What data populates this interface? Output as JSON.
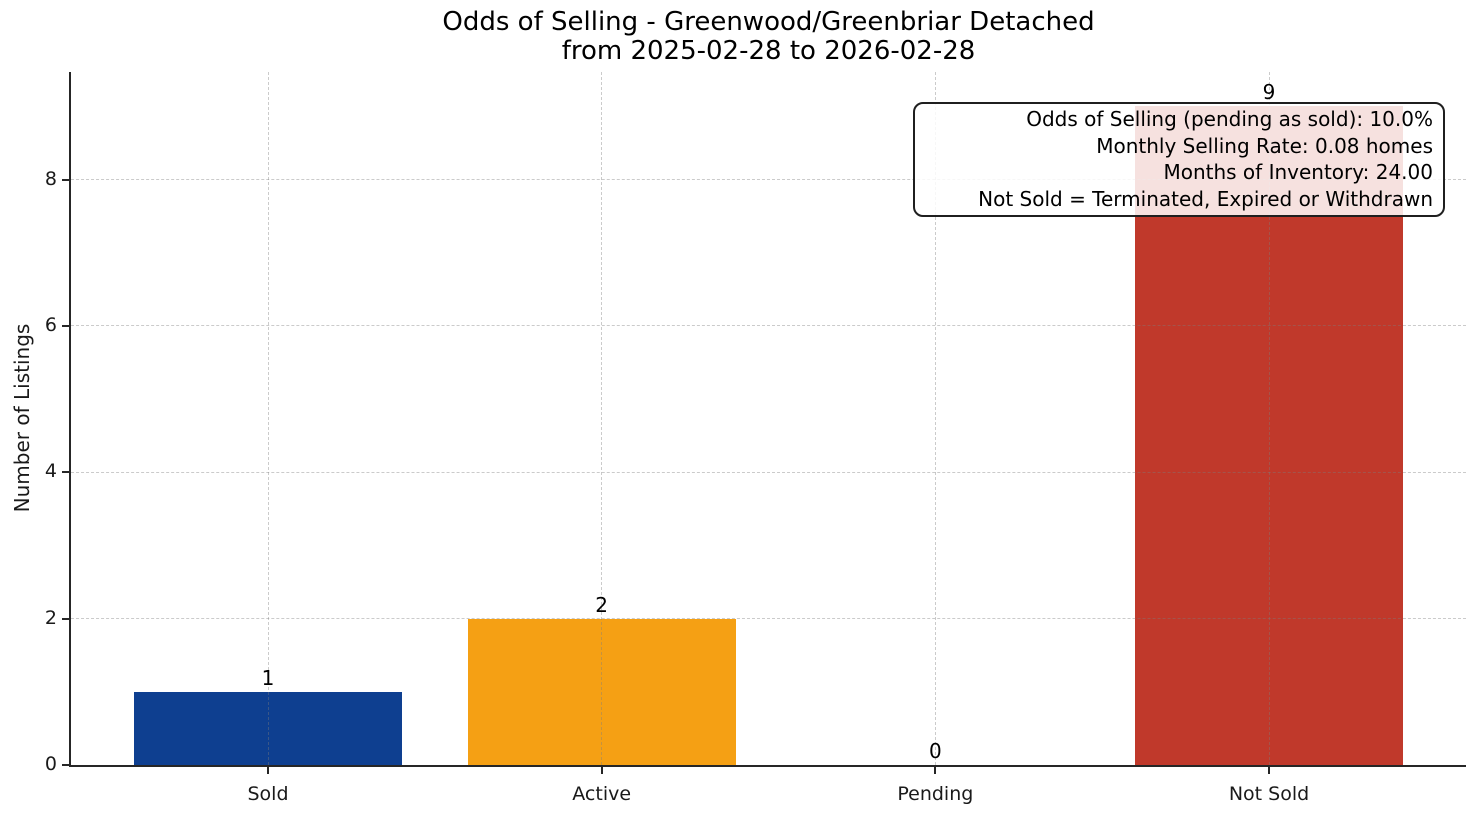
{
  "chart_data": {
    "type": "bar",
    "title": "Odds of Selling - Greenwood/Greenbriar Detached\nfrom 2025-02-28 to 2026-02-28",
    "title_lines": [
      "Odds of Selling - Greenwood/Greenbriar Detached",
      "from 2025-02-28 to 2026-02-28"
    ],
    "categories": [
      "Sold",
      "Active",
      "Pending",
      "Not Sold"
    ],
    "values": [
      1,
      2,
      0,
      9
    ],
    "value_labels": [
      "1",
      "2",
      "0",
      "9"
    ],
    "bar_colors": [
      "#0e3f90",
      "#f5a014",
      null,
      "#c0392b"
    ],
    "xlabel": "",
    "ylabel": "Number of Listings",
    "ylim": [
      0,
      9.47
    ],
    "yticks": [
      0,
      2,
      4,
      6,
      8
    ],
    "grid": "dashed gridlines on both axes",
    "legend": "none",
    "annotation": {
      "lines": [
        "Odds of Selling (pending as sold): 10.0%",
        "Monthly Selling Rate: 0.08 homes",
        "Months of Inventory: 24.00",
        "Not Sold = Terminated, Expired or Withdrawn"
      ]
    },
    "colors": {
      "sold_bar": "#0e3f90",
      "active_bar": "#f5a014",
      "not_sold_bar": "#c0392b",
      "axis": "#262626",
      "text": "#1a1a1a"
    }
  }
}
